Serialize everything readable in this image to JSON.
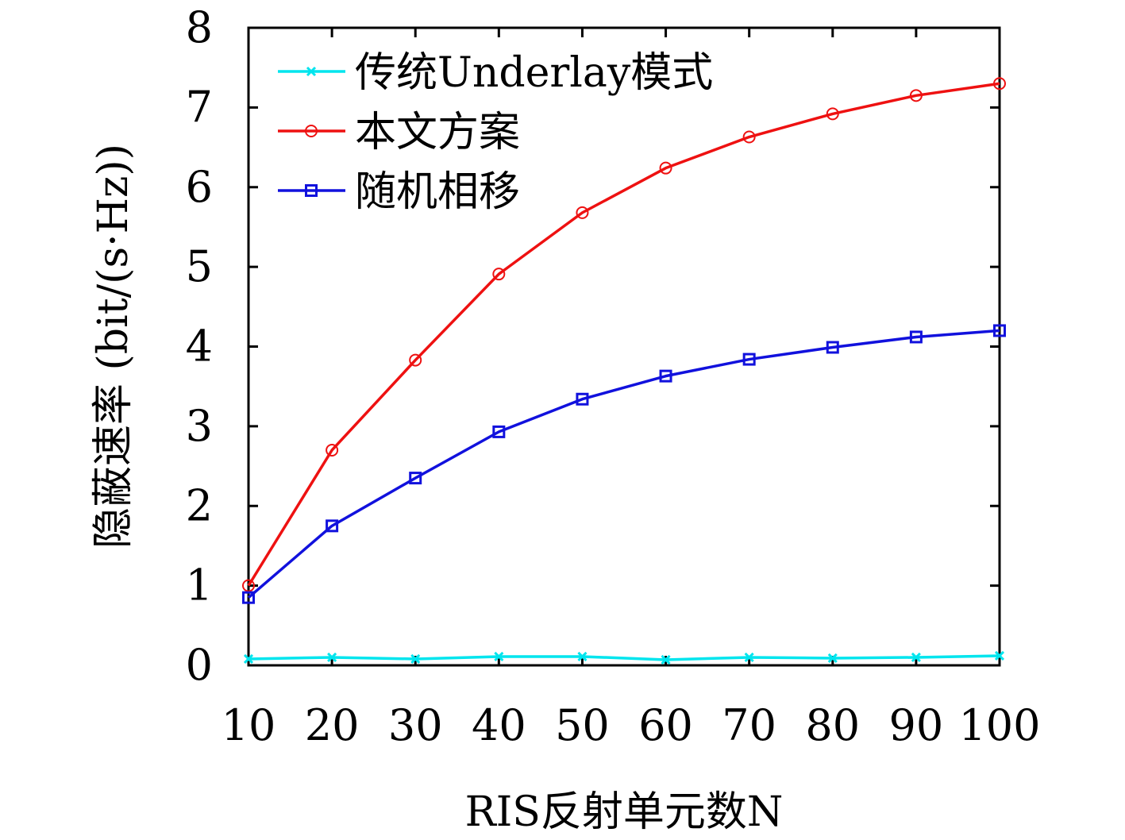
{
  "chart_data": {
    "type": "line",
    "xlabel": "RIS反射单元数N",
    "ylabel": "隐蔽速率 (bit/(s·Hz))",
    "x": [
      10,
      20,
      30,
      40,
      50,
      60,
      70,
      80,
      90,
      100
    ],
    "xticks": [
      "10",
      "20",
      "30",
      "40",
      "50",
      "60",
      "70",
      "80",
      "90",
      "100"
    ],
    "yticks": [
      "0",
      "1",
      "2",
      "3",
      "4",
      "5",
      "6",
      "7",
      "8"
    ],
    "xlim": [
      10,
      100
    ],
    "ylim": [
      0,
      8
    ],
    "grid": false,
    "legend_position": "top-left",
    "series": [
      {
        "name": "传统Underlay模式",
        "color": "#00e5ee",
        "marker": "x",
        "values": [
          0.08,
          0.1,
          0.08,
          0.11,
          0.11,
          0.07,
          0.1,
          0.09,
          0.1,
          0.12
        ]
      },
      {
        "name": "本文方案",
        "color": "#ee1111",
        "marker": "circle",
        "values": [
          1.0,
          2.7,
          3.83,
          4.91,
          5.68,
          6.24,
          6.63,
          6.92,
          7.15,
          7.3
        ]
      },
      {
        "name": "随机相移",
        "color": "#1111dd",
        "marker": "square",
        "values": [
          0.85,
          1.75,
          2.35,
          2.93,
          3.34,
          3.63,
          3.84,
          3.99,
          4.12,
          4.2
        ]
      }
    ]
  }
}
